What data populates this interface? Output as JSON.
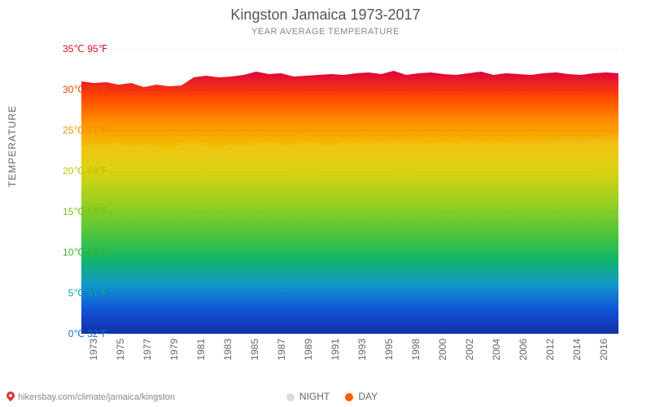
{
  "title": "Kingston Jamaica 1973-2017",
  "subtitle": "YEAR AVERAGE TEMPERATURE",
  "yaxis_label": "TEMPERATURE",
  "footer": "hikersbay.com/climate/jamaica/kingston",
  "legend": {
    "night": {
      "label": "NIGHT",
      "color": "#dddddd"
    },
    "day": {
      "label": "DAY",
      "color": "#ff5a00"
    }
  },
  "chart": {
    "type": "area",
    "background_color": "#ffffff",
    "ylim_c": [
      0,
      35
    ],
    "grid_dash": "3,4",
    "grid_color": "rgba(0,0,0,0.08)",
    "yticks": [
      {
        "c": 0,
        "f": 32,
        "label_c": "0℃",
        "label_f": "32℉",
        "color": "#1a6fd0"
      },
      {
        "c": 5,
        "f": 41,
        "label_c": "5℃",
        "label_f": "41℉",
        "color": "#00a6a0"
      },
      {
        "c": 10,
        "f": 50,
        "label_c": "10℃",
        "label_f": "50℉",
        "color": "#3cb02c"
      },
      {
        "c": 15,
        "f": 59,
        "label_c": "15℃",
        "label_f": "59℉",
        "color": "#7bbf1a"
      },
      {
        "c": 20,
        "f": 68,
        "label_c": "20℃",
        "label_f": "68℉",
        "color": "#c0c400"
      },
      {
        "c": 25,
        "f": 77,
        "label_c": "25℃",
        "label_f": "77℉",
        "color": "#f09000"
      },
      {
        "c": 30,
        "f": 86,
        "label_c": "30℃",
        "label_f": "86℉",
        "color": "#e84a00"
      },
      {
        "c": 35,
        "f": 95,
        "label_c": "35℃",
        "label_f": "95℉",
        "color": "#d01020"
      }
    ],
    "xticks": [
      "1973",
      "1975",
      "1977",
      "1979",
      "1981",
      "1983",
      "1985",
      "1987",
      "1989",
      "1991",
      "1993",
      "1995",
      "1998",
      "2000",
      "2002",
      "2004",
      "2006",
      "2012",
      "2014",
      "2016"
    ],
    "n_points": 44,
    "day_series": [
      31,
      30.8,
      30.9,
      30.6,
      30.8,
      30.3,
      30.6,
      30.4,
      30.5,
      31.5,
      31.7,
      31.5,
      31.6,
      31.8,
      32.2,
      31.9,
      32,
      31.6,
      31.7,
      31.8,
      31.9,
      31.8,
      32,
      32.1,
      31.9,
      32.3,
      31.8,
      32,
      32.1,
      31.9,
      31.8,
      32,
      32.2,
      31.8,
      32,
      31.9,
      31.8,
      32,
      32.1,
      31.9,
      31.8,
      32,
      32.1,
      32
    ],
    "night_series": [
      23,
      23.3,
      23.2,
      23.5,
      23,
      23.4,
      23,
      22.6,
      23.4,
      23.8,
      23.2,
      22.6,
      23.4,
      23.1,
      23.5,
      23.6,
      23.3,
      23.2,
      23.6,
      23.4,
      23.2,
      23.7,
      23.4,
      23.8,
      23.5,
      23.8,
      23.6,
      23.7,
      23.3,
      23.6,
      23.4,
      23.8,
      23.5,
      23.7,
      23.4,
      23.8,
      23.6,
      23.9,
      23.7,
      24,
      23.8,
      24.1,
      23.9,
      24
    ],
    "gradient_stops": [
      {
        "c": 0,
        "color": "#0020a0"
      },
      {
        "c": 3,
        "color": "#0046d6"
      },
      {
        "c": 6,
        "color": "#0090c8"
      },
      {
        "c": 9,
        "color": "#00b060"
      },
      {
        "c": 12,
        "color": "#3cc030"
      },
      {
        "c": 16,
        "color": "#90cc10"
      },
      {
        "c": 20,
        "color": "#d8d000"
      },
      {
        "c": 23,
        "color": "#f0c000"
      },
      {
        "c": 26,
        "color": "#ff9000"
      },
      {
        "c": 29,
        "color": "#ff4800"
      },
      {
        "c": 32,
        "color": "#e00838"
      }
    ]
  }
}
